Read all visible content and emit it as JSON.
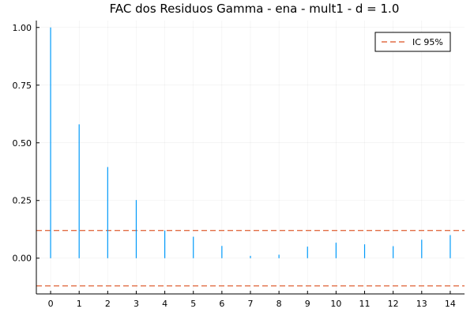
{
  "chart_data": {
    "type": "bar",
    "title": "FAC dos Residuos  Gamma - ena - mult1 - d = 1.0",
    "xlabel": "",
    "ylabel": "",
    "x": [
      0,
      1,
      2,
      3,
      4,
      5,
      6,
      7,
      8,
      9,
      10,
      11,
      12,
      13,
      14
    ],
    "series": [
      {
        "values": [
          1.0,
          0.58,
          0.395,
          0.252,
          0.12,
          0.093,
          0.053,
          0.01,
          0.015,
          0.05,
          0.067,
          0.06,
          0.052,
          0.08,
          0.1
        ],
        "color": "#009AFA"
      }
    ],
    "reference_lines": [
      {
        "name": "IC 95%",
        "y": 0.12,
        "color": "#E26F46",
        "style": "dashed"
      },
      {
        "y": -0.12,
        "color": "#E26F46",
        "style": "dashed"
      }
    ],
    "x_ticks": [
      "0",
      "1",
      "2",
      "3",
      "4",
      "5",
      "6",
      "7",
      "8",
      "9",
      "10",
      "11",
      "12",
      "13",
      "14"
    ],
    "y_ticks": [
      "0.00",
      "0.25",
      "0.50",
      "0.75",
      "1.00"
    ],
    "y_tick_values": [
      0,
      0.25,
      0.5,
      0.75,
      1.0
    ],
    "xlim": [
      -0.5,
      14.5
    ],
    "ylim": [
      -0.155,
      1.03
    ],
    "grid": true,
    "legend_position": "top-right"
  }
}
